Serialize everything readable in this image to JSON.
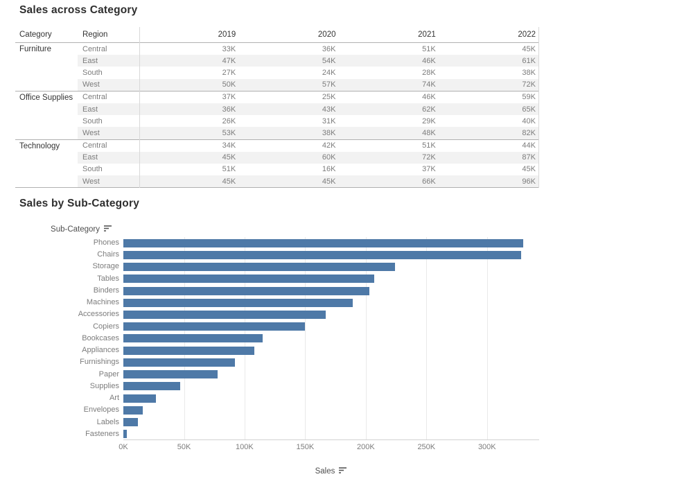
{
  "crosstab": {
    "title": "Sales across Category",
    "columns": [
      "Category",
      "Region",
      "2019",
      "2020",
      "2021",
      "2022"
    ],
    "groups": [
      {
        "category": "Furniture",
        "rows": [
          {
            "region": "Central",
            "values": [
              "33K",
              "36K",
              "51K",
              "45K"
            ]
          },
          {
            "region": "East",
            "values": [
              "47K",
              "54K",
              "46K",
              "61K"
            ]
          },
          {
            "region": "South",
            "values": [
              "27K",
              "24K",
              "28K",
              "38K"
            ]
          },
          {
            "region": "West",
            "values": [
              "50K",
              "57K",
              "74K",
              "72K"
            ]
          }
        ]
      },
      {
        "category": "Office Supplies",
        "rows": [
          {
            "region": "Central",
            "values": [
              "37K",
              "25K",
              "46K",
              "59K"
            ]
          },
          {
            "region": "East",
            "values": [
              "36K",
              "43K",
              "62K",
              "65K"
            ]
          },
          {
            "region": "South",
            "values": [
              "26K",
              "31K",
              "29K",
              "40K"
            ]
          },
          {
            "region": "West",
            "values": [
              "53K",
              "38K",
              "48K",
              "82K"
            ]
          }
        ]
      },
      {
        "category": "Technology",
        "rows": [
          {
            "region": "Central",
            "values": [
              "34K",
              "42K",
              "51K",
              "44K"
            ]
          },
          {
            "region": "East",
            "values": [
              "45K",
              "60K",
              "72K",
              "87K"
            ]
          },
          {
            "region": "South",
            "values": [
              "51K",
              "16K",
              "37K",
              "45K"
            ]
          },
          {
            "region": "West",
            "values": [
              "45K",
              "45K",
              "66K",
              "96K"
            ]
          }
        ]
      }
    ]
  },
  "bar_chart": {
    "title": "Sales by Sub-Category",
    "row_axis_label": "Sub-Category",
    "row_axis_sort_icon": "sort-descending",
    "x_axis_label": "Sales",
    "x_axis_sort_icon": "sort-descending"
  },
  "chart_data": {
    "type": "bar",
    "orientation": "horizontal",
    "title": "Sales by Sub-Category",
    "xlabel": "Sales",
    "ylabel": "Sub-Category",
    "categories": [
      "Phones",
      "Chairs",
      "Storage",
      "Tables",
      "Binders",
      "Machines",
      "Accessories",
      "Copiers",
      "Bookcases",
      "Appliances",
      "Furnishings",
      "Paper",
      "Supplies",
      "Art",
      "Envelopes",
      "Labels",
      "Fasteners"
    ],
    "values": [
      330,
      328,
      224,
      207,
      203,
      189,
      167,
      150,
      115,
      108,
      92,
      78,
      47,
      27,
      16,
      12,
      3
    ],
    "unit": "K",
    "x_ticks": [
      "0K",
      "50K",
      "100K",
      "150K",
      "200K",
      "250K",
      "300K"
    ],
    "x_tick_values": [
      0,
      50,
      100,
      150,
      200,
      250,
      300
    ],
    "xlim": [
      0,
      343
    ],
    "grid": "vertical",
    "sort": "descending",
    "bar_color": "#4e79a7"
  }
}
